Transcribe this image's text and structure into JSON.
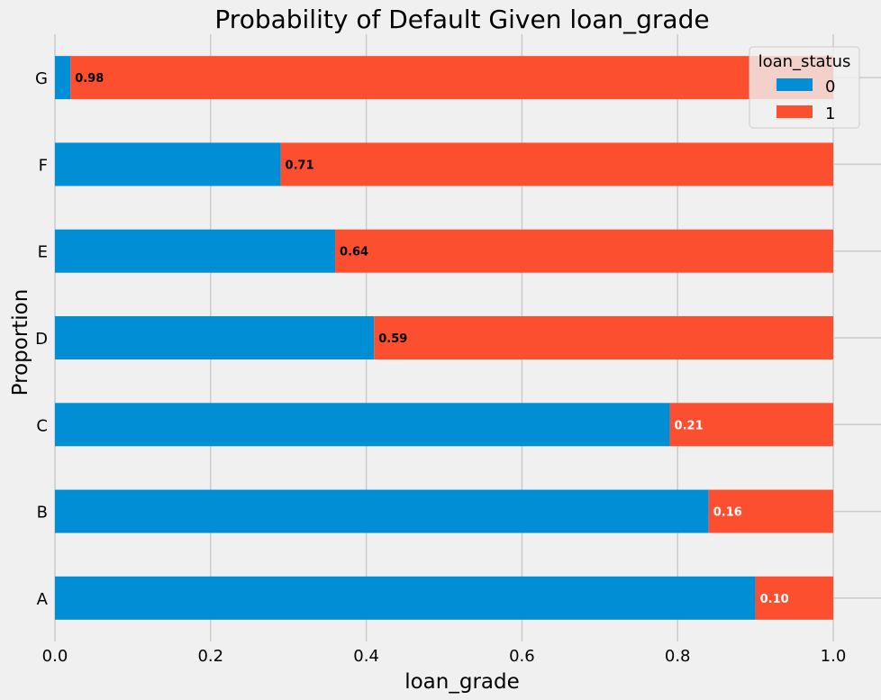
{
  "chart_data": {
    "type": "bar",
    "orientation": "horizontal",
    "stacked": true,
    "title": "Probability of Default Given loan_grade",
    "xlabel": "loan_grade",
    "ylabel": "Proportion",
    "categories": [
      "A",
      "B",
      "C",
      "D",
      "E",
      "F",
      "G"
    ],
    "xlim": [
      0,
      1.0
    ],
    "x_ticks": [
      "0.0",
      "0.2",
      "0.4",
      "0.6",
      "0.8",
      "1.0"
    ],
    "x_tick_values": [
      0,
      0.2,
      0.4,
      0.6,
      0.8,
      1.0
    ],
    "grid": true,
    "legend": {
      "title": "loan_status",
      "placement": "top-right"
    },
    "series": [
      {
        "name": "0",
        "color": "#008fd5",
        "values": [
          0.9,
          0.84,
          0.79,
          0.41,
          0.36,
          0.29,
          0.02
        ]
      },
      {
        "name": "1",
        "color": "#fc4f30",
        "values": [
          0.1,
          0.16,
          0.21,
          0.59,
          0.64,
          0.71,
          0.98
        ]
      }
    ],
    "data_labels": [
      {
        "text": "0.10",
        "color": "#ffffff"
      },
      {
        "text": "0.16",
        "color": "#ffffff"
      },
      {
        "text": "0.21",
        "color": "#ffffff"
      },
      {
        "text": "0.59",
        "color": "#000000"
      },
      {
        "text": "0.64",
        "color": "#000000"
      },
      {
        "text": "0.71",
        "color": "#000000"
      },
      {
        "text": "0.98",
        "color": "#000000"
      }
    ],
    "colors": {
      "background": "#f0f0f0",
      "grid": "#cbcbcb"
    }
  }
}
